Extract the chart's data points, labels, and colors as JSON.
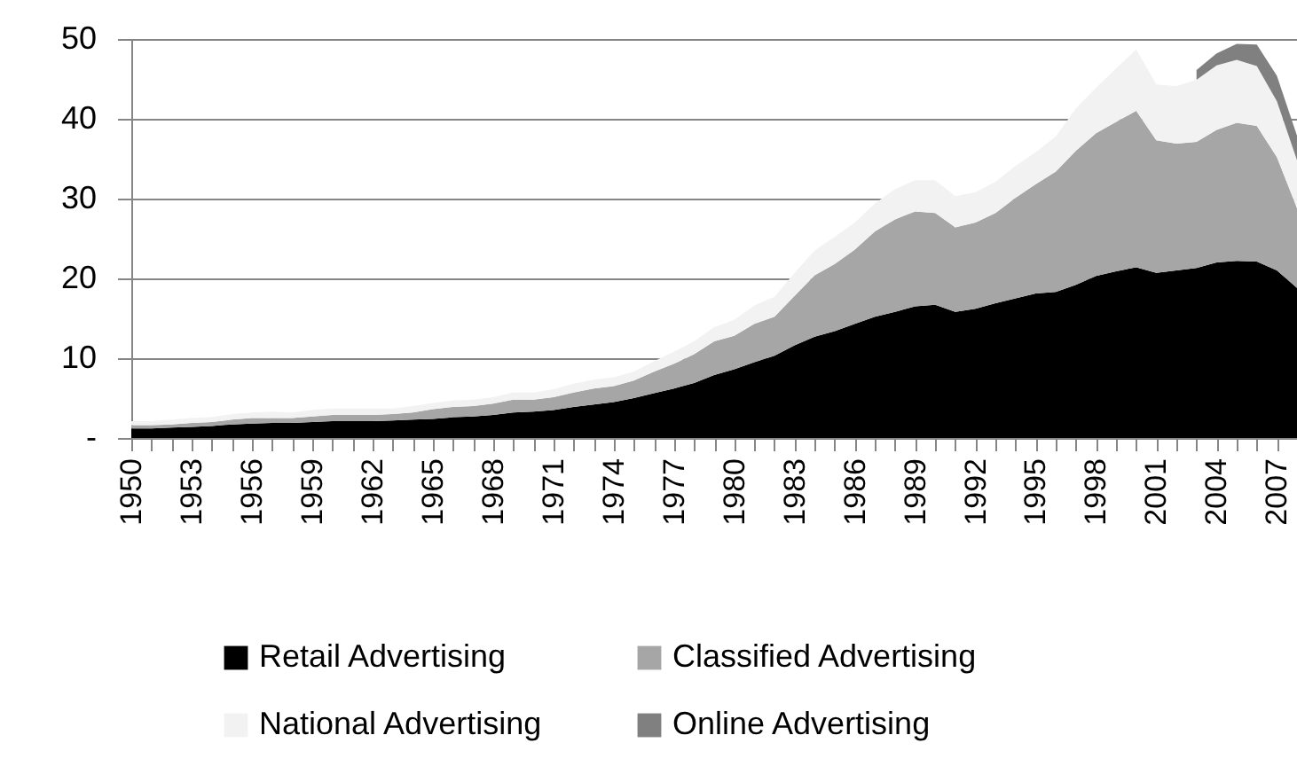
{
  "chart_data": {
    "type": "area",
    "stacked": true,
    "categories": [
      "1950",
      null,
      null,
      "1953",
      null,
      null,
      "1956",
      null,
      null,
      "1959",
      null,
      null,
      "1962",
      null,
      null,
      "1965",
      null,
      null,
      "1968",
      null,
      null,
      "1971",
      null,
      null,
      "1974",
      null,
      null,
      "1977",
      null,
      null,
      "1980",
      null,
      null,
      "1983",
      null,
      null,
      "1986",
      null,
      null,
      "1989",
      null,
      null,
      "1992",
      null,
      null,
      "1995",
      null,
      null,
      "1998",
      null,
      null,
      "2001",
      null,
      null,
      "2004",
      null,
      null,
      "2007",
      null
    ],
    "series": [
      {
        "name": "Retail Advertising",
        "color": "#000000",
        "values": [
          1.2,
          1.2,
          1.3,
          1.4,
          1.5,
          1.7,
          1.8,
          1.9,
          1.9,
          2.0,
          2.1,
          2.1,
          2.1,
          2.2,
          2.3,
          2.4,
          2.6,
          2.7,
          2.9,
          3.2,
          3.3,
          3.5,
          3.9,
          4.2,
          4.5,
          5.0,
          5.6,
          6.2,
          6.9,
          7.9,
          8.6,
          9.5,
          10.3,
          11.6,
          12.7,
          13.4,
          14.3,
          15.2,
          15.8,
          16.5,
          16.7,
          15.8,
          16.2,
          16.9,
          17.5,
          18.1,
          18.3,
          19.2,
          20.3,
          20.9,
          21.4,
          20.7,
          21.0,
          21.3,
          22.0,
          22.2,
          22.1,
          21.0,
          18.8
        ]
      },
      {
        "name": "Classified Advertising",
        "color": "#a6a6a6",
        "values": [
          0.4,
          0.4,
          0.4,
          0.5,
          0.5,
          0.6,
          0.7,
          0.6,
          0.6,
          0.7,
          0.8,
          0.8,
          0.8,
          0.8,
          0.9,
          1.2,
          1.3,
          1.3,
          1.4,
          1.6,
          1.5,
          1.6,
          1.8,
          2.0,
          2.0,
          2.2,
          2.7,
          3.1,
          3.6,
          4.2,
          4.2,
          4.8,
          4.9,
          6.2,
          7.7,
          8.4,
          9.3,
          10.7,
          11.6,
          11.9,
          11.5,
          10.6,
          10.8,
          11.3,
          12.6,
          13.7,
          15.1,
          16.8,
          17.9,
          18.7,
          19.6,
          16.6,
          15.9,
          15.8,
          16.6,
          17.3,
          17.0,
          14.2,
          10.0
        ]
      },
      {
        "name": "National Advertising",
        "color": "#f2f2f2",
        "values": [
          0.5,
          0.5,
          0.6,
          0.6,
          0.6,
          0.7,
          0.7,
          0.8,
          0.7,
          0.8,
          0.8,
          0.8,
          0.8,
          0.7,
          0.8,
          0.8,
          0.8,
          0.8,
          0.8,
          0.9,
          0.9,
          1.0,
          1.1,
          1.1,
          1.1,
          1.1,
          1.3,
          1.5,
          1.6,
          1.8,
          2.0,
          2.3,
          2.5,
          2.9,
          3.1,
          3.4,
          3.4,
          3.5,
          3.8,
          3.9,
          4.1,
          3.9,
          3.8,
          3.9,
          4.0,
          4.0,
          4.4,
          5.3,
          5.7,
          6.7,
          7.7,
          7.0,
          7.2,
          7.8,
          8.1,
          7.9,
          7.5,
          7.0,
          6.0
        ]
      },
      {
        "name": "Online Advertising",
        "color": "#808080",
        "values": [
          null,
          null,
          null,
          null,
          null,
          null,
          null,
          null,
          null,
          null,
          null,
          null,
          null,
          null,
          null,
          null,
          null,
          null,
          null,
          null,
          null,
          null,
          null,
          null,
          null,
          null,
          null,
          null,
          null,
          null,
          null,
          null,
          null,
          null,
          null,
          null,
          null,
          null,
          null,
          null,
          null,
          null,
          null,
          null,
          null,
          null,
          null,
          null,
          null,
          null,
          null,
          null,
          null,
          1.2,
          1.5,
          2.0,
          2.7,
          3.2,
          3.1
        ]
      }
    ],
    "ylim": [
      0,
      50
    ],
    "yticks": [
      {
        "value": 0,
        "label": "-"
      },
      10,
      20,
      30,
      40,
      50
    ],
    "grid": "y",
    "legend": "bottom"
  }
}
